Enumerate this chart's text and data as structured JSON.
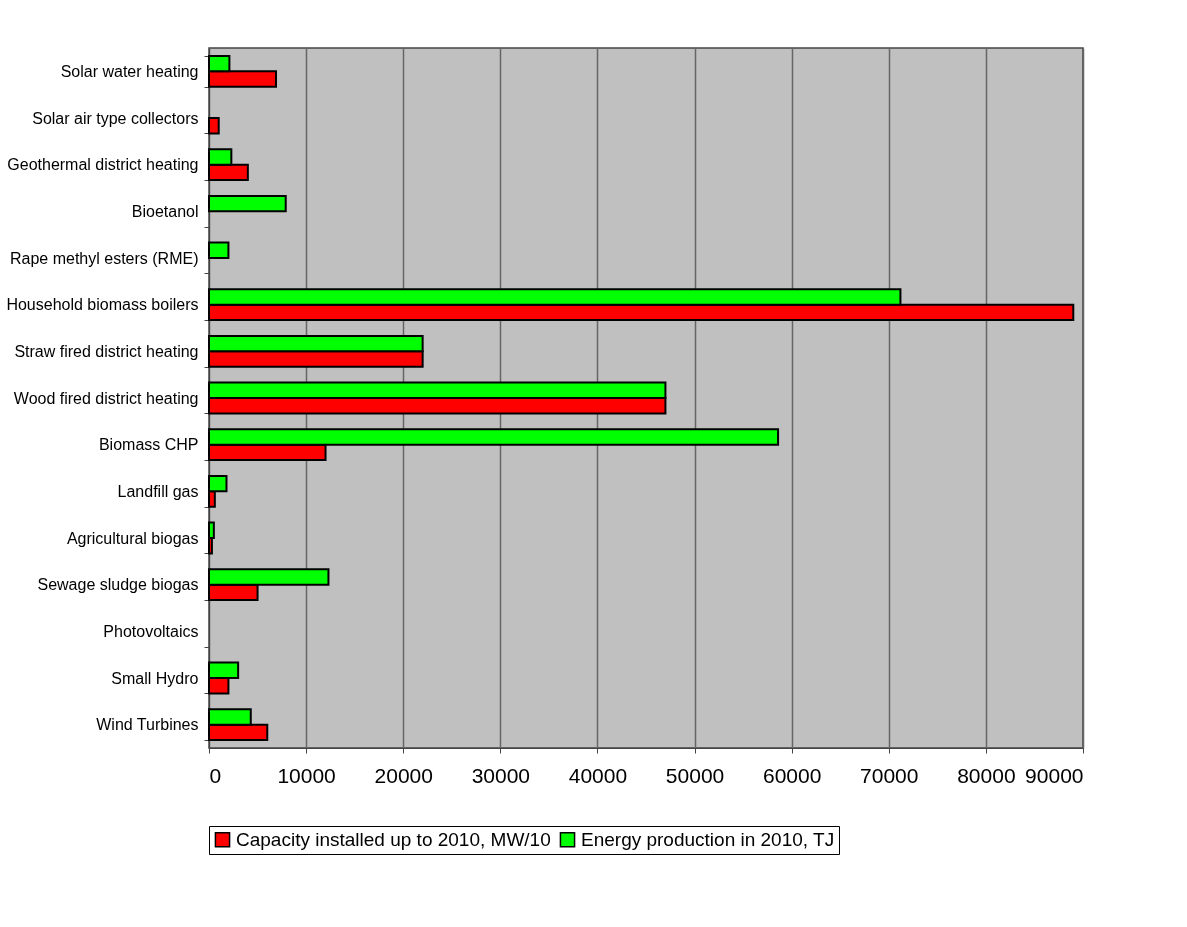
{
  "chart_data": {
    "type": "bar",
    "orientation": "horizontal",
    "categories": [
      "Solar water heating",
      "Solar air type collectors",
      "Geothermal district heating",
      "Bioetanol",
      "Rape methyl esters (RME)",
      "Household biomass boilers",
      "Straw fired district heating",
      "Wood fired district heating",
      "Biomass CHP",
      "Landfill gas",
      "Agricultural biogas",
      "Sewage sludge biogas",
      "Photovoltaics",
      "Small Hydro",
      "Wind Turbines"
    ],
    "series": [
      {
        "name": "Capacity installed up to 2010, MW/10",
        "color": "#ff0000",
        "values": [
          6900,
          1000,
          4000,
          null,
          null,
          89000,
          22000,
          47000,
          12000,
          600,
          300,
          5000,
          null,
          2000,
          6000
        ]
      },
      {
        "name": "Energy production in 2010, TJ",
        "color": "#00ff00",
        "values": [
          2100,
          null,
          2300,
          7900,
          2000,
          71200,
          22000,
          47000,
          58600,
          1800,
          500,
          12300,
          null,
          3000,
          4300
        ]
      }
    ],
    "xlim": [
      0,
      90000
    ],
    "xticks": [
      0,
      10000,
      20000,
      30000,
      40000,
      50000,
      60000,
      70000,
      80000,
      90000
    ],
    "grid": "x",
    "legend": "bottom"
  }
}
